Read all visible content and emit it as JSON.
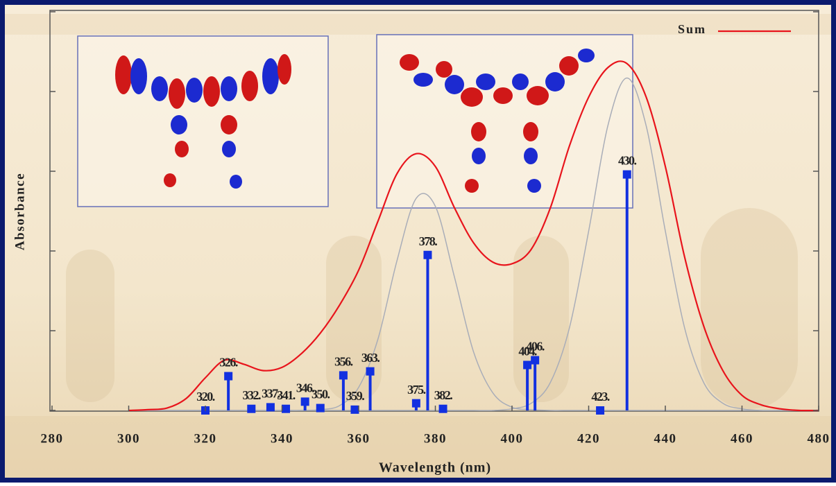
{
  "chart_data": {
    "type": "spectrum",
    "xlabel": "Wavelength (nm)",
    "ylabel": "Absorbance",
    "xlim": [
      280,
      480
    ],
    "xticks": [
      280,
      300,
      320,
      340,
      360,
      380,
      400,
      420,
      440,
      460,
      480
    ],
    "ylim": [
      0,
      5
    ],
    "yticks": [
      0,
      1,
      2,
      3,
      4,
      5
    ],
    "x": [
      300,
      305,
      310,
      315,
      320,
      325,
      330,
      335,
      340,
      345,
      350,
      355,
      360,
      365,
      370,
      375,
      380,
      385,
      390,
      395,
      400,
      405,
      410,
      415,
      420,
      425,
      430,
      435,
      440,
      445,
      450,
      455,
      460,
      465,
      470,
      475,
      480
    ],
    "series": [
      {
        "name": "Sum",
        "color": "#e8141c",
        "values": [
          0,
          0.01,
          0.03,
          0.15,
          0.41,
          0.63,
          0.58,
          0.5,
          0.54,
          0.71,
          0.97,
          1.32,
          1.76,
          2.37,
          2.97,
          3.22,
          3.06,
          2.54,
          2.1,
          1.86,
          1.84,
          2.02,
          2.54,
          3.32,
          3.93,
          4.3,
          4.35,
          3.93,
          3.06,
          1.93,
          1.06,
          0.5,
          0.19,
          0.07,
          0.02,
          0,
          0
        ]
      }
    ],
    "components": [
      {
        "color": "#a9adb8",
        "values": [
          0,
          0,
          0,
          0,
          0,
          0,
          0,
          0,
          0,
          0,
          0.01,
          0.06,
          0.29,
          0.89,
          1.88,
          2.66,
          2.56,
          1.67,
          0.73,
          0.22,
          0.04,
          0.01,
          0,
          0,
          0,
          0,
          0,
          0,
          0,
          0,
          0,
          0,
          0,
          0,
          0,
          0,
          0
        ]
      },
      {
        "color": "#a9adb8",
        "values": [
          0,
          0,
          0,
          0,
          0,
          0,
          0,
          0,
          0,
          0,
          0,
          0,
          0,
          0,
          0,
          0,
          0,
          0,
          0,
          0,
          0.02,
          0.09,
          0.35,
          1.04,
          2.25,
          3.57,
          4.17,
          3.57,
          2.25,
          1.04,
          0.35,
          0.09,
          0.02,
          0,
          0,
          0,
          0
        ]
      }
    ],
    "sticks": {
      "color": "#1230e0",
      "x": [
        320,
        326,
        332,
        337,
        341,
        346,
        350,
        356,
        359,
        363,
        375,
        378,
        382,
        404,
        406,
        423,
        430
      ],
      "values": [
        0,
        0.43,
        0.02,
        0.04,
        0.02,
        0.11,
        0.03,
        0.44,
        0.01,
        0.49,
        0.09,
        1.95,
        0.02,
        0.57,
        0.63,
        0,
        2.96
      ],
      "value_labels": [
        "320.",
        "326.",
        "332.",
        "337.",
        "341.",
        "346.",
        "350.",
        "356.",
        "359.",
        "363.",
        "375.",
        "378.",
        "382.",
        "404.",
        "406.",
        "423.",
        "430."
      ]
    }
  }
}
